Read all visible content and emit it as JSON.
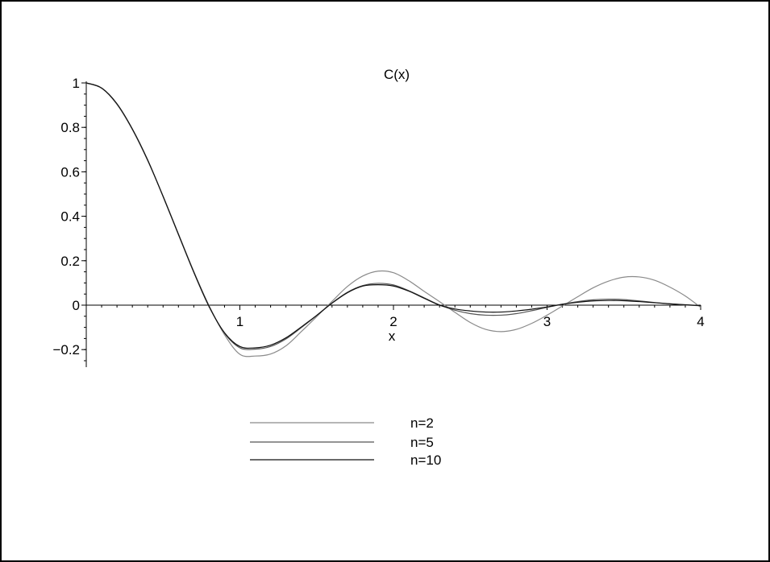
{
  "chart_data": {
    "type": "line",
    "title": "C(x)",
    "xlabel": "x",
    "ylabel": "",
    "xlim": [
      0,
      4
    ],
    "ylim": [
      -0.25,
      1.0
    ],
    "x_ticks": [
      1,
      2,
      3,
      4
    ],
    "y_ticks": [
      {
        "value": -0.2,
        "label": "−0.2"
      },
      {
        "value": 0,
        "label": "0"
      },
      {
        "value": 0.2,
        "label": "0.2"
      },
      {
        "value": 0.4,
        "label": "0.4"
      },
      {
        "value": 0.6,
        "label": "0.6"
      },
      {
        "value": 0.8,
        "label": "0.8"
      },
      {
        "value": 1,
        "label": "1"
      }
    ],
    "grid": false,
    "legend_position": "bottom-center",
    "x": [
      0,
      0.1,
      0.2,
      0.3,
      0.4,
      0.5,
      0.6,
      0.7,
      0.8,
      0.9,
      1.0,
      1.1,
      1.2,
      1.3,
      1.4,
      1.5,
      1.6,
      1.7,
      1.8,
      1.9,
      2.0,
      2.1,
      2.2,
      2.3,
      2.4,
      2.5,
      2.6,
      2.7,
      2.8,
      2.9,
      3.0,
      3.1,
      3.2,
      3.3,
      3.4,
      3.5,
      3.6,
      3.7,
      3.8,
      3.9,
      4.0
    ],
    "series": [
      {
        "name": "n=2",
        "color": "#8a8a8a",
        "values": [
          1.0,
          0.976,
          0.903,
          0.79,
          0.65,
          0.491,
          0.321,
          0.152,
          -0.003,
          -0.133,
          -0.221,
          -0.229,
          -0.22,
          -0.183,
          -0.119,
          -0.052,
          0.017,
          0.084,
          0.131,
          0.153,
          0.146,
          0.11,
          0.062,
          0.016,
          -0.032,
          -0.078,
          -0.109,
          -0.119,
          -0.109,
          -0.082,
          -0.045,
          -0.004,
          0.038,
          0.078,
          0.108,
          0.126,
          0.127,
          0.112,
          0.081,
          0.041,
          -0.01
        ]
      },
      {
        "name": "n=5",
        "color": "#555555",
        "values": [
          1.0,
          0.977,
          0.905,
          0.792,
          0.652,
          0.49,
          0.319,
          0.149,
          -0.006,
          -0.126,
          -0.192,
          -0.198,
          -0.186,
          -0.152,
          -0.101,
          -0.047,
          0.01,
          0.058,
          0.088,
          0.098,
          0.091,
          0.065,
          0.033,
          0.001,
          -0.023,
          -0.038,
          -0.045,
          -0.045,
          -0.038,
          -0.025,
          -0.01,
          0.004,
          0.016,
          0.024,
          0.027,
          0.025,
          0.019,
          0.012,
          0.006,
          0.001,
          -0.003
        ]
      },
      {
        "name": "n=10",
        "color": "#111111",
        "values": [
          1.0,
          0.977,
          0.906,
          0.793,
          0.653,
          0.489,
          0.318,
          0.148,
          -0.007,
          -0.124,
          -0.186,
          -0.192,
          -0.18,
          -0.147,
          -0.098,
          -0.046,
          0.009,
          0.056,
          0.086,
          0.092,
          0.086,
          0.063,
          0.031,
          0.0,
          -0.017,
          -0.026,
          -0.031,
          -0.031,
          -0.026,
          -0.018,
          -0.008,
          0.004,
          0.013,
          0.019,
          0.021,
          0.02,
          0.016,
          0.011,
          0.006,
          0.002,
          -0.002
        ]
      }
    ]
  }
}
